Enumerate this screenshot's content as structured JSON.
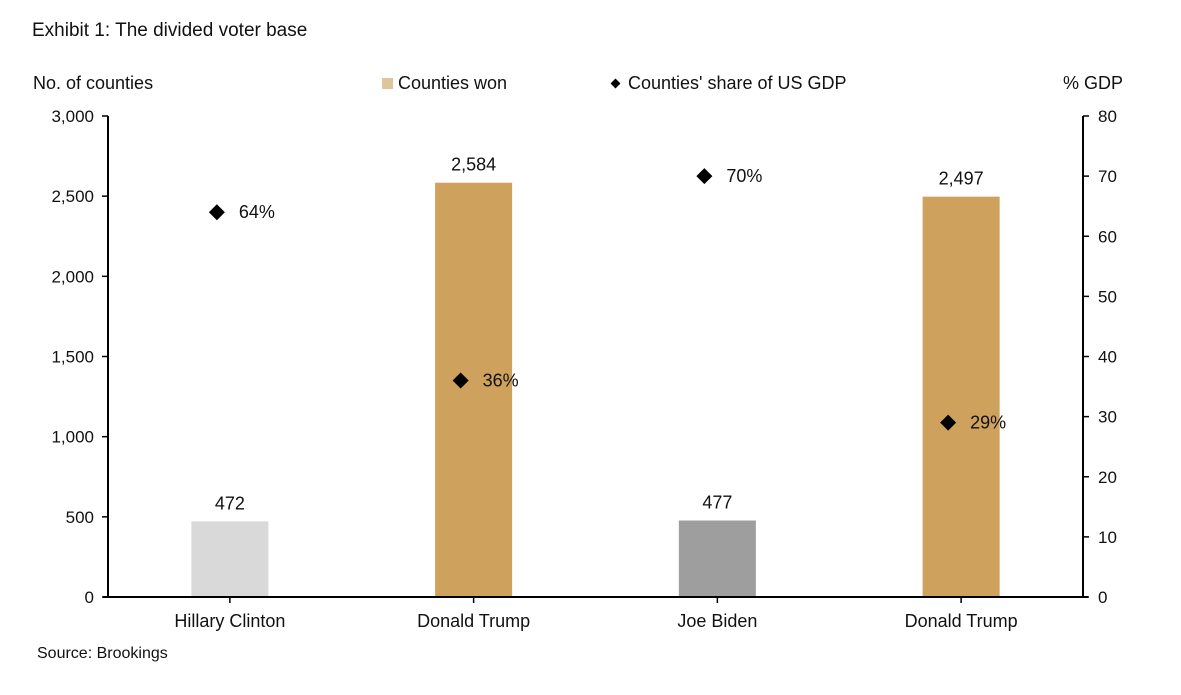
{
  "header": {
    "title": "Exhibit 1: The divided voter base",
    "left_axis_label": "No. of counties",
    "right_axis_label": "% GDP",
    "source": "Source: Brookings"
  },
  "legend": {
    "bar_label": "Counties won",
    "marker_label": "Counties' share of US GDP"
  },
  "colors": {
    "trump": "#cea15c",
    "clinton": "#d9d9d9",
    "biden": "#9e9e9e",
    "marker": "#000000",
    "legend_bar": "#dcc79c"
  },
  "chart_data": {
    "type": "bar",
    "title": "Exhibit 1: The divided voter base",
    "categories": [
      "Hillary Clinton",
      "Donald Trump",
      "Joe Biden",
      "Donald Trump"
    ],
    "series": [
      {
        "name": "Counties won",
        "axis": "left",
        "type": "bar",
        "values": [
          472,
          2584,
          477,
          2497
        ],
        "labels": [
          "472",
          "2,584",
          "477",
          "2,497"
        ],
        "colors": [
          "#d9d9d9",
          "#cea15c",
          "#9e9e9e",
          "#cea15c"
        ]
      },
      {
        "name": "Counties' share of US GDP",
        "axis": "right",
        "type": "scatter",
        "marker": "diamond",
        "values": [
          64,
          36,
          70,
          29
        ],
        "labels": [
          "64%",
          "36%",
          "70%",
          "29%"
        ]
      }
    ],
    "ylabel": "No. of counties",
    "ylim": [
      0,
      3000
    ],
    "yticks": [
      0,
      500,
      1000,
      1500,
      2000,
      2500,
      3000
    ],
    "ytick_labels": [
      "0",
      "500",
      "1,000",
      "1,500",
      "2,000",
      "2,500",
      "3,000"
    ],
    "y2label": "% GDP",
    "y2lim": [
      0,
      80
    ],
    "y2ticks": [
      0,
      10,
      20,
      30,
      40,
      50,
      60,
      70,
      80
    ],
    "y2tick_labels": [
      "0",
      "10",
      "20",
      "30",
      "40",
      "50",
      "60",
      "70",
      "80"
    ],
    "grid": false,
    "legend_position": "top-center",
    "source": "Source: Brookings"
  }
}
